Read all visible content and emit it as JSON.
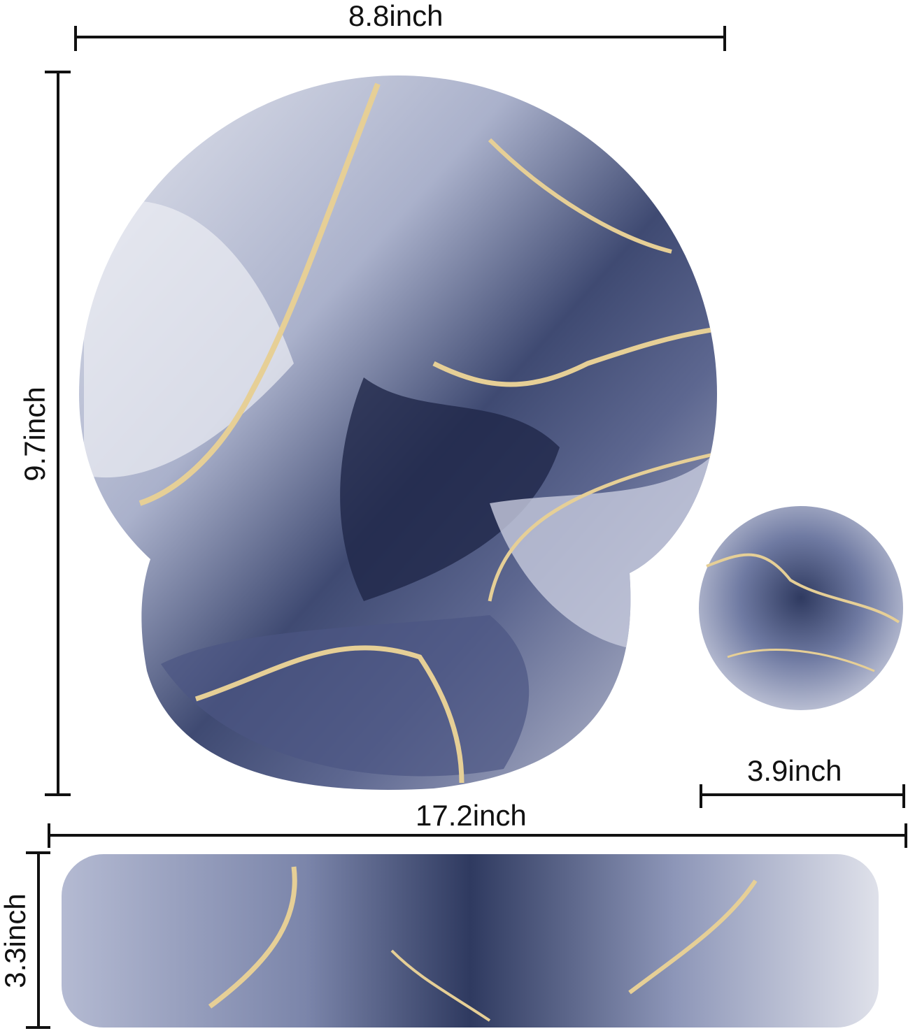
{
  "dimensions": {
    "mousepad_width": "8.8inch",
    "mousepad_height": "9.7inch",
    "coaster_diameter": "3.9inch",
    "wrist_rest_length": "17.2inch",
    "wrist_rest_height": "3.3inch"
  },
  "colors": {
    "marble_light": "#d9dbe6",
    "marble_mid": "#8a93b4",
    "marble_dark": "#2c3558",
    "gold_vein": "#e6cf96",
    "dimension_line": "#111111"
  }
}
